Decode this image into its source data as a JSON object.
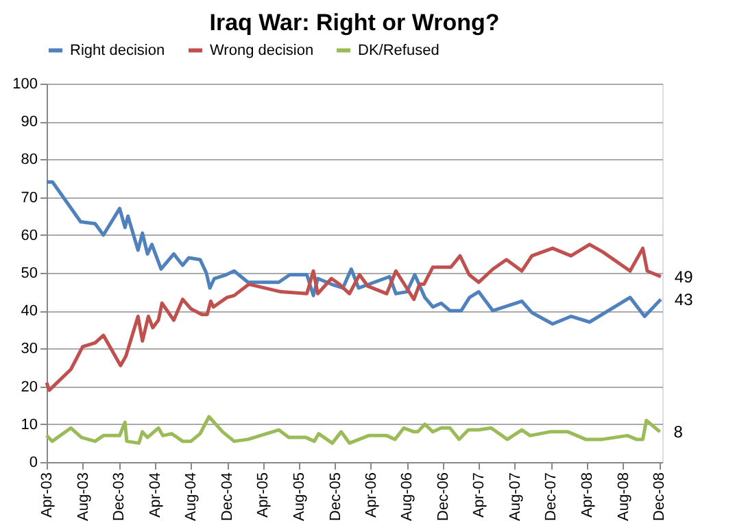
{
  "chart_data": {
    "type": "line",
    "title": "Iraq War: Right or Wrong?",
    "xlim": [
      "2003-04-01",
      "2008-12-12"
    ],
    "xticks": [
      {
        "value": "2003-04",
        "label": "Apr-03"
      },
      {
        "value": "2003-08",
        "label": "Aug-03"
      },
      {
        "value": "2003-12",
        "label": "Dec-03"
      },
      {
        "value": "2004-04",
        "label": "Apr-04"
      },
      {
        "value": "2004-08",
        "label": "Aug-04"
      },
      {
        "value": "2004-12",
        "label": "Dec-04"
      },
      {
        "value": "2005-04",
        "label": "Apr-05"
      },
      {
        "value": "2005-08",
        "label": "Aug-05"
      },
      {
        "value": "2005-12",
        "label": "Dec-05"
      },
      {
        "value": "2006-04",
        "label": "Apr-06"
      },
      {
        "value": "2006-08",
        "label": "Aug-06"
      },
      {
        "value": "2006-12",
        "label": "Dec-06"
      },
      {
        "value": "2007-04",
        "label": "Apr-07"
      },
      {
        "value": "2007-08",
        "label": "Aug-07"
      },
      {
        "value": "2007-12",
        "label": "Dec-07"
      },
      {
        "value": "2008-04",
        "label": "Apr-08"
      },
      {
        "value": "2008-08",
        "label": "Aug-08"
      },
      {
        "value": "2008-12",
        "label": "Dec-08"
      }
    ],
    "ylim": [
      0,
      100
    ],
    "yticks": [
      0,
      10,
      20,
      30,
      40,
      50,
      60,
      70,
      80,
      90,
      100
    ],
    "grid": "y",
    "legend": "top",
    "marker": "none",
    "line_style": "solid",
    "series": [
      {
        "name": "Right decision",
        "color": "#4f81bd",
        "x": [
          "2003-04-01",
          "2003-04-21",
          "2003-07-25",
          "2003-09-12",
          "2003-10-10",
          "2003-12-04",
          "2003-12-22",
          "2004-01-01",
          "2004-02-04",
          "2004-02-19",
          "2004-03-07",
          "2004-03-22",
          "2004-04-22",
          "2004-06-04",
          "2004-07-04",
          "2004-07-25",
          "2004-09-01",
          "2004-09-22",
          "2004-10-04",
          "2004-10-19",
          "2004-11-28",
          "2004-12-25",
          "2005-02-10",
          "2005-05-25",
          "2005-07-01",
          "2005-08-28",
          "2005-09-19",
          "2005-10-04",
          "2005-11-19",
          "2005-12-28",
          "2006-01-25",
          "2006-02-19",
          "2006-06-04",
          "2006-06-25",
          "2006-08-01",
          "2006-08-28",
          "2006-10-01",
          "2006-10-28",
          "2006-11-25",
          "2006-12-25",
          "2007-02-01",
          "2007-03-01",
          "2007-04-01",
          "2007-05-19",
          "2007-08-25",
          "2007-09-28",
          "2007-12-07",
          "2008-02-07",
          "2008-04-10",
          "2008-08-25",
          "2008-10-13",
          "2008-12-07"
        ],
        "values": [
          74,
          74,
          63.5,
          63,
          60,
          67,
          62,
          65,
          56,
          60.5,
          55,
          57.5,
          51,
          55,
          52,
          54,
          53.5,
          50,
          46,
          48.5,
          49.5,
          50.5,
          47.5,
          47.5,
          49.5,
          49.5,
          44,
          48.5,
          47,
          46,
          51,
          46,
          49,
          44.5,
          45,
          49.5,
          43.5,
          41,
          42,
          40,
          40,
          43.5,
          45,
          40,
          42.5,
          39.5,
          36.5,
          38.5,
          37,
          43.5,
          38.5,
          43
        ]
      },
      {
        "name": "Wrong decision",
        "color": "#c0504d",
        "x": [
          "2003-04-01",
          "2003-04-10",
          "2003-06-22",
          "2003-08-01",
          "2003-09-12",
          "2003-10-10",
          "2003-12-07",
          "2003-12-25",
          "2004-02-04",
          "2004-02-19",
          "2004-03-10",
          "2004-03-25",
          "2004-04-13",
          "2004-04-25",
          "2004-06-04",
          "2004-07-04",
          "2004-08-01",
          "2004-09-07",
          "2004-09-25",
          "2004-10-07",
          "2004-10-16",
          "2004-12-01",
          "2004-12-25",
          "2005-02-13",
          "2005-06-01",
          "2005-08-28",
          "2005-09-19",
          "2005-10-04",
          "2005-11-19",
          "2005-12-16",
          "2006-01-19",
          "2006-02-22",
          "2006-03-22",
          "2006-05-25",
          "2006-06-25",
          "2006-08-25",
          "2006-09-13",
          "2006-09-28",
          "2006-10-28",
          "2006-12-28",
          "2007-01-28",
          "2007-02-28",
          "2007-04-01",
          "2007-05-19",
          "2007-07-04",
          "2007-08-25",
          "2007-09-28",
          "2007-12-07",
          "2008-02-07",
          "2008-04-10",
          "2008-05-25",
          "2008-08-25",
          "2008-10-07",
          "2008-10-22",
          "2008-12-07"
        ],
        "values": [
          21,
          19,
          24.5,
          30.5,
          31.5,
          33.5,
          25.5,
          28,
          38.5,
          32,
          38.5,
          35.5,
          37.5,
          42,
          37.5,
          43,
          40.5,
          39,
          39,
          42.5,
          41,
          43.5,
          44,
          47,
          45,
          44.5,
          50.5,
          44.5,
          48.5,
          47,
          44.5,
          49.5,
          46.5,
          44.5,
          50.5,
          43,
          47,
          47,
          51.5,
          51.5,
          54.5,
          49.5,
          47.5,
          51,
          53.5,
          50.5,
          54.5,
          56.5,
          54.5,
          57.5,
          55.5,
          50.5,
          56.5,
          50.5,
          49
        ]
      },
      {
        "name": "DK/Refused",
        "color": "#9bbb59",
        "x": [
          "2003-04-01",
          "2003-04-20",
          "2003-06-22",
          "2003-07-28",
          "2003-09-12",
          "2003-10-10",
          "2003-12-04",
          "2003-12-22",
          "2003-12-28",
          "2004-02-07",
          "2004-02-19",
          "2004-03-07",
          "2004-04-13",
          "2004-04-28",
          "2004-05-28",
          "2004-07-04",
          "2004-08-01",
          "2004-09-01",
          "2004-10-01",
          "2004-11-16",
          "2004-12-25",
          "2005-02-10",
          "2005-05-25",
          "2005-06-28",
          "2005-08-25",
          "2005-09-22",
          "2005-10-07",
          "2005-11-22",
          "2005-12-22",
          "2006-01-19",
          "2006-03-25",
          "2006-05-25",
          "2006-06-22",
          "2006-07-22",
          "2006-08-25",
          "2006-09-07",
          "2006-10-01",
          "2006-10-28",
          "2006-11-25",
          "2006-12-25",
          "2007-01-25",
          "2007-02-25",
          "2007-04-01",
          "2007-05-13",
          "2007-07-07",
          "2007-08-25",
          "2007-09-22",
          "2007-11-28",
          "2008-01-28",
          "2008-03-28",
          "2008-05-22",
          "2008-08-16",
          "2008-09-16",
          "2008-10-07",
          "2008-10-19",
          "2008-12-04"
        ],
        "values": [
          7,
          5.5,
          9,
          6.5,
          5.5,
          7,
          7,
          10.5,
          5.5,
          5,
          8,
          6.5,
          9,
          7,
          7.5,
          5.5,
          5.5,
          7.5,
          12,
          8,
          5.5,
          6,
          8.5,
          6.5,
          6.5,
          5.5,
          7.5,
          5,
          8,
          5,
          7,
          7,
          6,
          9,
          8,
          8,
          10,
          8,
          9,
          9,
          6,
          8.5,
          8.5,
          9,
          6,
          8.5,
          7,
          8,
          8,
          6,
          6,
          7,
          6,
          6,
          11,
          8
        ]
      }
    ],
    "annotations": [
      {
        "text": "49",
        "x": "2008-12-07",
        "y": 49
      },
      {
        "text": "43",
        "x": "2008-12-07",
        "y": 43
      },
      {
        "text": "8",
        "x": "2008-12-04",
        "y": 8
      }
    ]
  }
}
